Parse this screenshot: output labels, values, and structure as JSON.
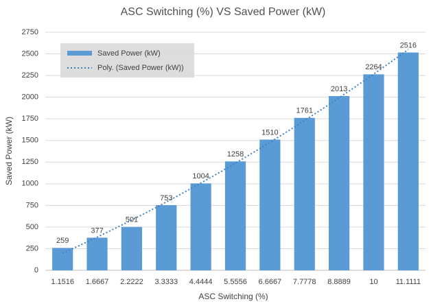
{
  "chart_data": {
    "type": "bar",
    "title": "ASC Switching (%) VS Saved Power (kW)",
    "x_label": "ASC Switching (%)",
    "y_label": "Saved Power (kW)",
    "categories": [
      "1.1516",
      "1.6667",
      "2.2222",
      "3.3333",
      "4.4444",
      "5.5556",
      "6.6667",
      "7.7778",
      "8.8889",
      "10",
      "11.1111"
    ],
    "series": [
      {
        "name": "Saved Power (kW)",
        "color": "#5b9bd5",
        "values": [
          259,
          377,
          501,
          753,
          1004,
          1258,
          1510,
          1761,
          2013,
          2264,
          2516
        ]
      }
    ],
    "trendline": {
      "name": "Poly. (Saved Power (kW))",
      "kind": "polynomial",
      "order": 2,
      "color": "#3f7fbf",
      "style": "dotted"
    },
    "ylim": [
      0,
      2750
    ],
    "yticks": [
      0,
      250,
      500,
      750,
      1000,
      1250,
      1500,
      1750,
      2000,
      2250,
      2500,
      2750
    ],
    "grid": true,
    "legend": "top-left",
    "data_labels": true
  }
}
